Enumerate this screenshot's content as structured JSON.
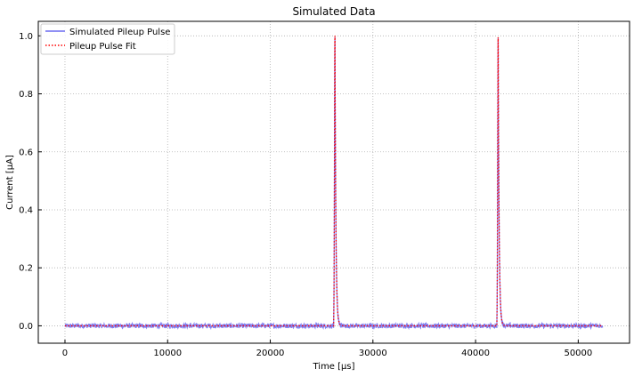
{
  "chart_data": {
    "type": "line",
    "title": "Simulated Data",
    "xlabel": "Time [µs]",
    "ylabel": "Current [µA]",
    "xlim": [
      -2600,
      55000
    ],
    "ylim": [
      -0.06,
      1.05
    ],
    "xticks": [
      0,
      10000,
      20000,
      30000,
      40000,
      50000
    ],
    "xtick_labels": [
      "0",
      "10000",
      "20000",
      "30000",
      "40000",
      "50000"
    ],
    "yticks": [
      0.0,
      0.2,
      0.4,
      0.6,
      0.8,
      1.0
    ],
    "ytick_labels": [
      "0.0",
      "0.2",
      "0.4",
      "0.6",
      "0.8",
      "1.0"
    ],
    "grid": true,
    "legend_position": "top-left",
    "x_range": [
      0,
      52400
    ],
    "noise_amplitude": 0.008,
    "pulses": [
      {
        "peak_time": 26300,
        "peak_value": 1.0
      },
      {
        "peak_time": 42200,
        "peak_value": 0.995
      }
    ],
    "series": [
      {
        "name": "Simulated Pileup Pulse",
        "color": "#6b6bf0",
        "style": "solid"
      },
      {
        "name": "Pileup Pulse Fit",
        "color": "#ff0000",
        "style": "dotted"
      }
    ]
  }
}
